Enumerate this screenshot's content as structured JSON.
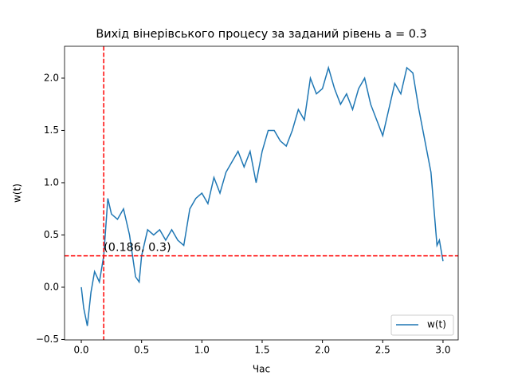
{
  "chart_data": {
    "type": "line",
    "title": "Вихід вінерівського процесу за заданий рівень a = 0.3",
    "xlabel": "Час",
    "ylabel": "w(t)",
    "x": [
      0,
      0.02,
      0.05,
      0.08,
      0.11,
      0.15,
      0.186,
      0.22,
      0.25,
      0.3,
      0.35,
      0.4,
      0.45,
      0.48,
      0.5,
      0.55,
      0.6,
      0.65,
      0.7,
      0.75,
      0.8,
      0.85,
      0.9,
      0.95,
      1.0,
      1.05,
      1.1,
      1.15,
      1.2,
      1.25,
      1.3,
      1.35,
      1.4,
      1.45,
      1.5,
      1.55,
      1.6,
      1.65,
      1.7,
      1.75,
      1.8,
      1.85,
      1.9,
      1.95,
      2.0,
      2.05,
      2.1,
      2.15,
      2.2,
      2.25,
      2.3,
      2.35,
      2.4,
      2.45,
      2.5,
      2.55,
      2.6,
      2.65,
      2.7,
      2.75,
      2.8,
      2.85,
      2.9,
      2.95,
      2.97,
      3.0
    ],
    "series": [
      {
        "name": "w(t)",
        "color": "#1f77b4",
        "values": [
          0,
          -0.2,
          -0.37,
          -0.05,
          0.15,
          0.05,
          0.3,
          0.85,
          0.7,
          0.65,
          0.75,
          0.5,
          0.1,
          0.05,
          0.3,
          0.55,
          0.5,
          0.55,
          0.45,
          0.55,
          0.45,
          0.4,
          0.75,
          0.85,
          0.9,
          0.8,
          1.05,
          0.9,
          1.1,
          1.2,
          1.3,
          1.15,
          1.3,
          1.0,
          1.3,
          1.5,
          1.5,
          1.4,
          1.35,
          1.5,
          1.7,
          1.6,
          2.0,
          1.85,
          1.9,
          2.1,
          1.9,
          1.75,
          1.85,
          1.7,
          1.9,
          2.0,
          1.75,
          1.6,
          1.45,
          1.7,
          1.95,
          1.85,
          2.1,
          2.05,
          1.7,
          1.4,
          1.1,
          0.4,
          0.45,
          0.25
        ]
      }
    ],
    "threshold": {
      "x": 0.186,
      "y": 0.3,
      "color": "#ff0000",
      "label": "(0.186, 0.3)"
    },
    "xlim": [
      -0.139,
      3.126
    ],
    "ylim": [
      -0.504,
      2.305
    ],
    "xticks": [
      {
        "value": 0,
        "label": "0.0"
      },
      {
        "value": 0.5,
        "label": "0.5"
      },
      {
        "value": 1,
        "label": "1.0"
      },
      {
        "value": 1.5,
        "label": "1.5"
      },
      {
        "value": 2,
        "label": "2.0"
      },
      {
        "value": 2.5,
        "label": "2.5"
      },
      {
        "value": 3,
        "label": "3.0"
      }
    ],
    "yticks": [
      {
        "value": -0.5,
        "label": "−0.5"
      },
      {
        "value": 0,
        "label": "0.0"
      },
      {
        "value": 0.5,
        "label": "0.5"
      },
      {
        "value": 1,
        "label": "1.0"
      },
      {
        "value": 1.5,
        "label": "1.5"
      },
      {
        "value": 2,
        "label": "2.0"
      }
    ],
    "legend": "lower right"
  }
}
